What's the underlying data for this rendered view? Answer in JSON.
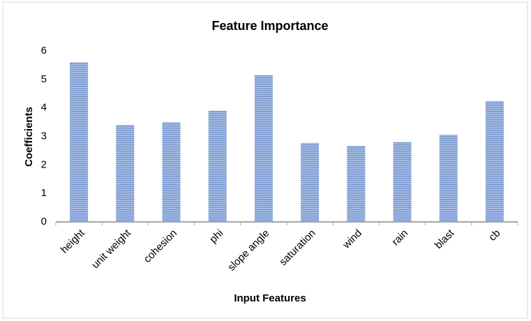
{
  "chart_data": {
    "type": "bar",
    "title": "Feature Importance",
    "x_label": "Input Features",
    "y_label": "Coefficients",
    "categories": [
      "height",
      "unit weight",
      "cohesion",
      "phi",
      "slope angle",
      "saturation",
      "wind",
      "rain",
      "blast",
      "cb"
    ],
    "values": [
      5.6,
      3.4,
      3.5,
      3.9,
      5.15,
      2.77,
      2.67,
      2.8,
      3.06,
      4.24
    ],
    "color": "#7f9fd3",
    "ylim": [
      0,
      6
    ],
    "yticks": [
      0,
      1,
      2,
      3,
      4,
      5,
      6
    ],
    "grid": false
  }
}
